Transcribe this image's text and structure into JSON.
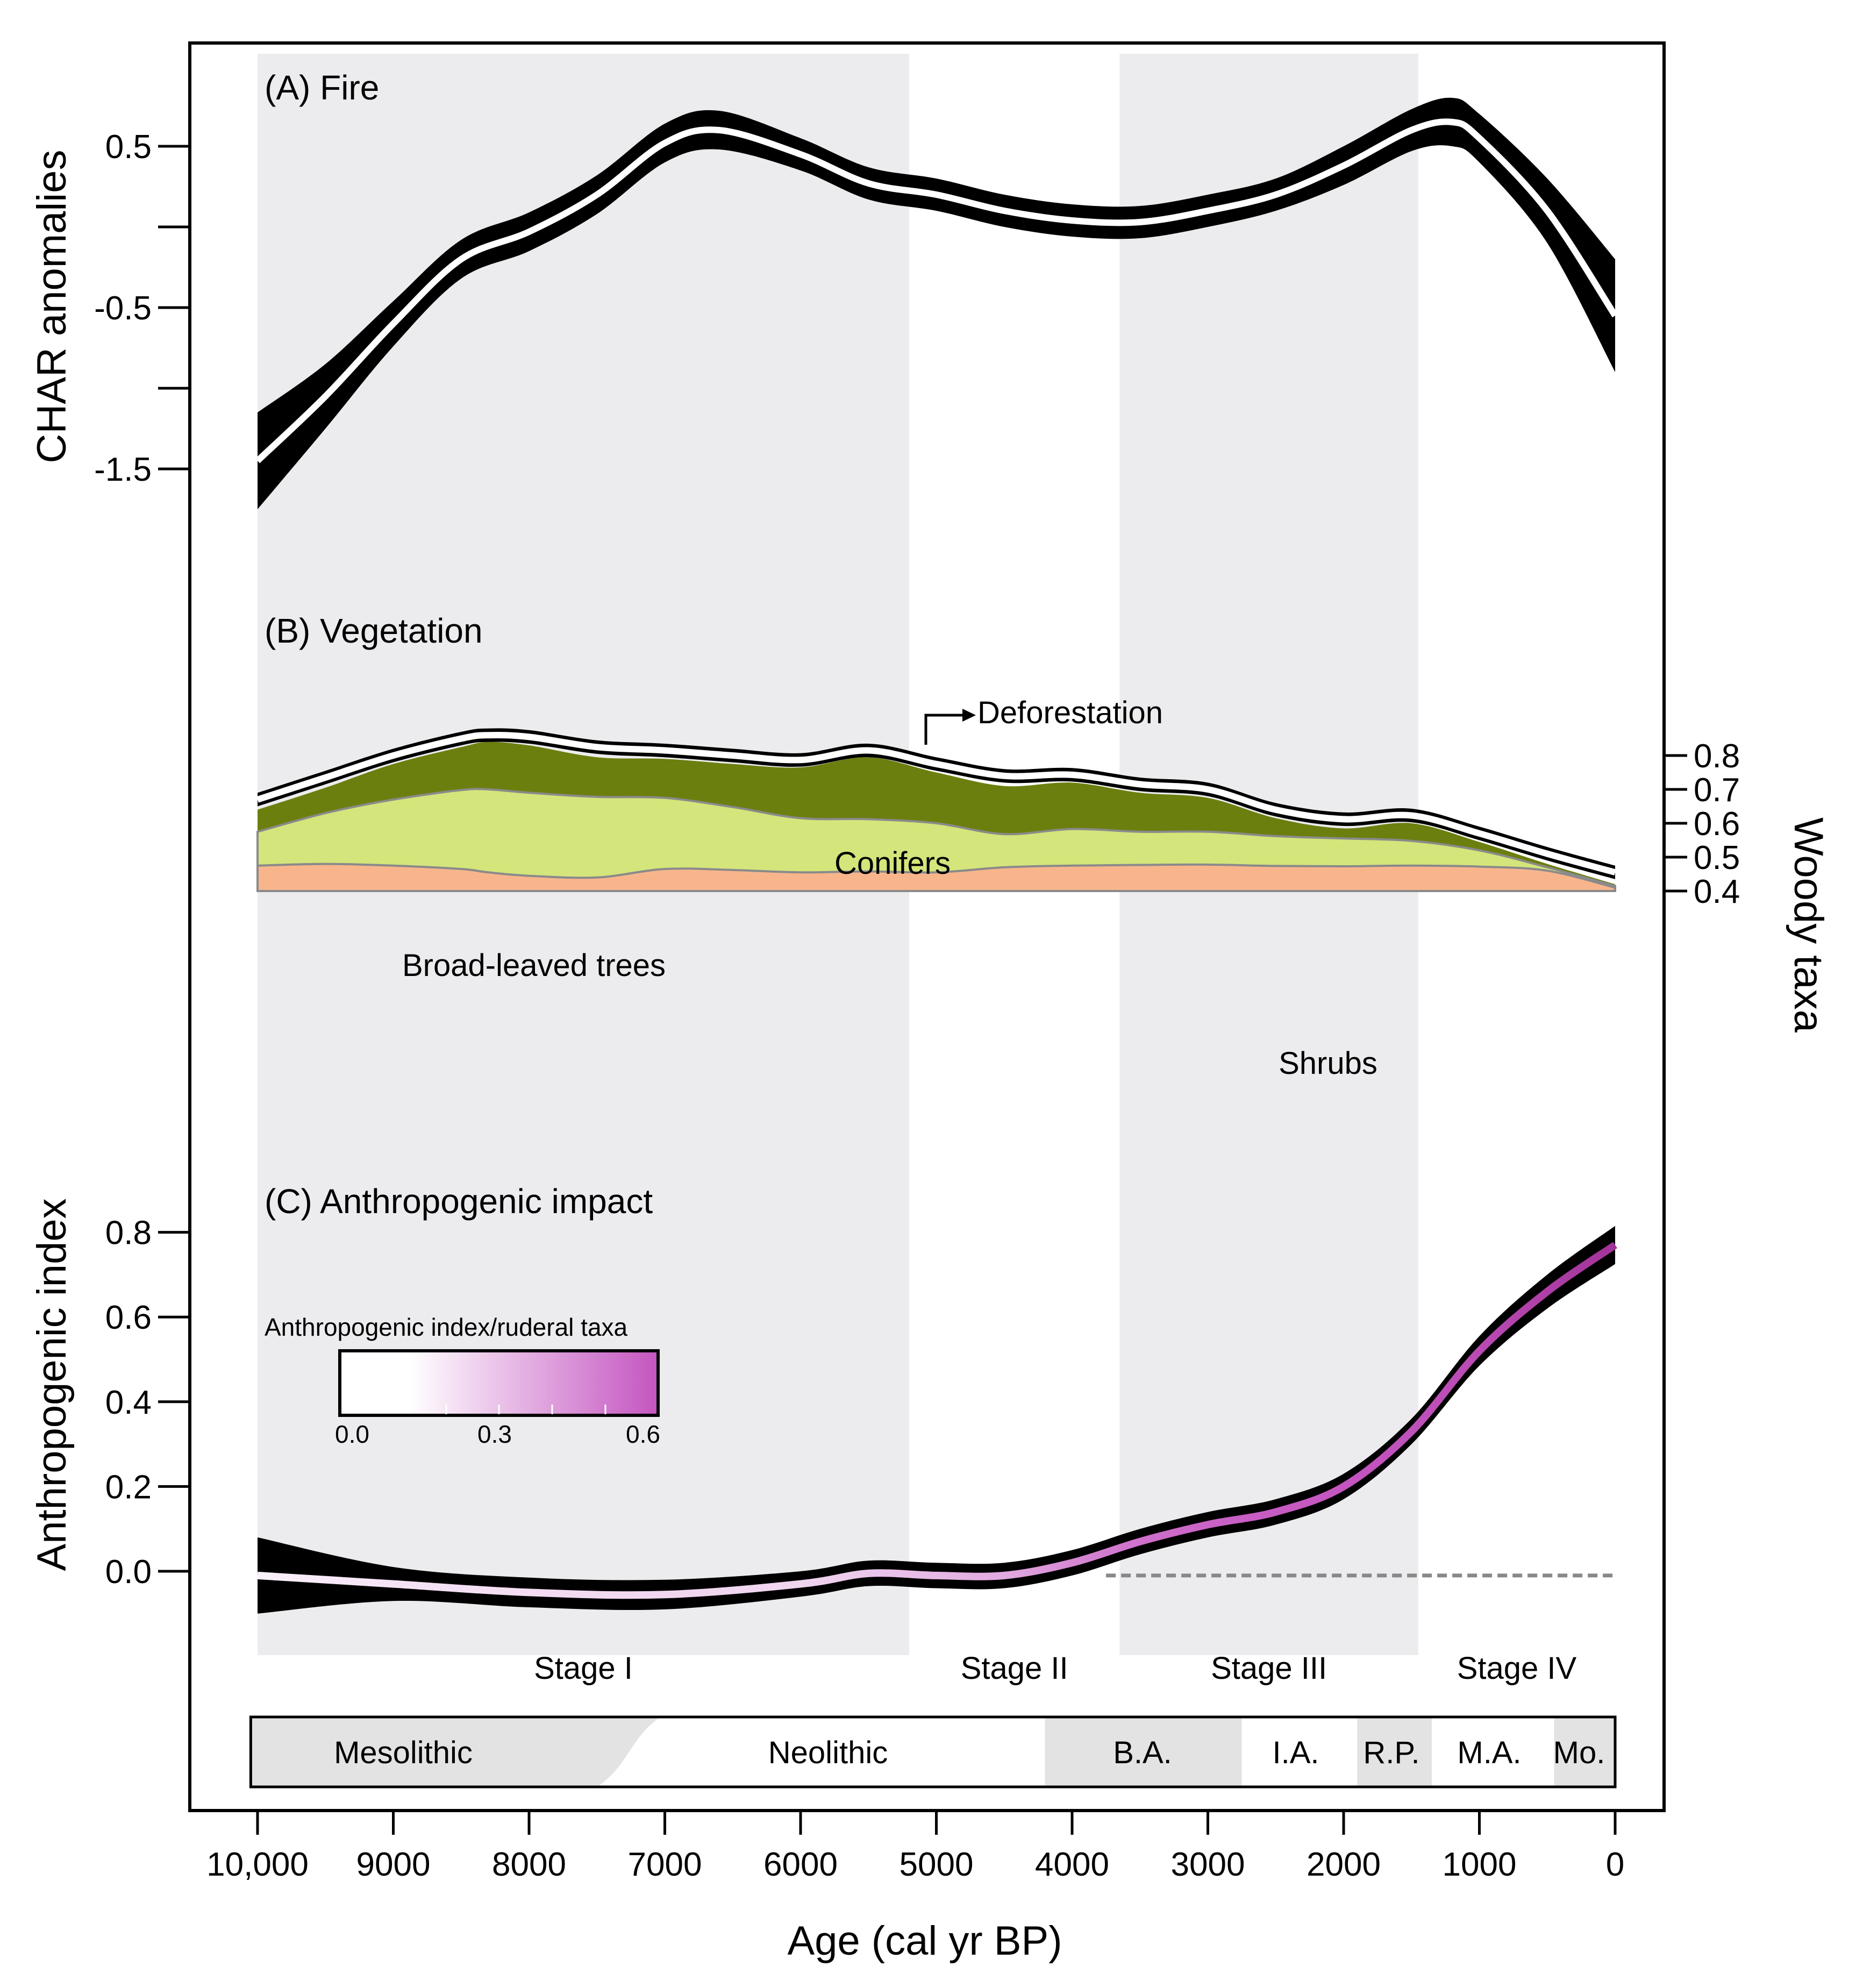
{
  "chart_data": {
    "type": "line",
    "x_axis": {
      "label": "Age (cal yr BP)",
      "range": [
        10000,
        0
      ],
      "ticks": [
        10000,
        9000,
        8000,
        7000,
        6000,
        5000,
        4000,
        3000,
        2000,
        1000,
        0
      ],
      "tick_labels": [
        "10,000",
        "9000",
        "8000",
        "7000",
        "6000",
        "5000",
        "4000",
        "3000",
        "2000",
        "1000",
        "0"
      ]
    },
    "stages": [
      {
        "name": "Stage I",
        "from": 10000,
        "to": 5200,
        "shaded": true
      },
      {
        "name": "Stage II",
        "from": 5200,
        "to": 3650,
        "shaded": false
      },
      {
        "name": "Stage III",
        "from": 3650,
        "to": 1450,
        "shaded": true
      },
      {
        "name": "Stage IV",
        "from": 1450,
        "to": 0,
        "shaded": false
      }
    ],
    "periods": [
      {
        "name": "Mesolithic",
        "from": 10050,
        "to": 7500,
        "shaded": true
      },
      {
        "name": "Neolithic",
        "from": 7500,
        "to": 4200,
        "shaded": false
      },
      {
        "name": "B.A.",
        "from": 4200,
        "to": 2750,
        "shaded": true
      },
      {
        "name": "I.A.",
        "from": 2750,
        "to": 1900,
        "shaded": false
      },
      {
        "name": "R.P.",
        "from": 1900,
        "to": 1350,
        "shaded": true
      },
      {
        "name": "M.A.",
        "from": 1350,
        "to": 450,
        "shaded": false
      },
      {
        "name": "Mo.",
        "from": 450,
        "to": 0,
        "shaded": true
      }
    ],
    "panels": [
      {
        "id": "A",
        "title": "(A) Fire",
        "ylabel": "CHAR anomalies",
        "y_ticks": [
          0.5,
          0,
          -0.5,
          -1,
          -1.5
        ],
        "y_tick_labels": [
          "0.5",
          "",
          "-0.5",
          "",
          "-1.5"
        ],
        "series": [
          {
            "name": "CHAR anomalies",
            "x": [
              10000,
              9500,
              9000,
              8500,
              8000,
              7500,
              7000,
              6600,
              6000,
              5500,
              5000,
              4500,
              4000,
              3500,
              3000,
              2500,
              2000,
              1500,
              1200,
              1000,
              500,
              0
            ],
            "mean": [
              -1.45,
              -1.05,
              -0.6,
              -0.2,
              -0.03,
              0.2,
              0.52,
              0.6,
              0.45,
              0.27,
              0.2,
              0.1,
              0.04,
              0.03,
              0.1,
              0.2,
              0.38,
              0.6,
              0.65,
              0.55,
              0.1,
              -0.55
            ],
            "ci_halfwidth": [
              0.3,
              0.2,
              0.14,
              0.12,
              0.12,
              0.12,
              0.12,
              0.12,
              0.1,
              0.1,
              0.1,
              0.1,
              0.1,
              0.1,
              0.1,
              0.1,
              0.12,
              0.13,
              0.15,
              0.15,
              0.2,
              0.35
            ]
          }
        ]
      },
      {
        "id": "B",
        "title": "(B) Vegetation",
        "ylabel": "Woody taxa",
        "y_ticks": [
          0.8,
          0.7,
          0.6,
          0.5,
          0.4
        ],
        "y_tick_labels": [
          "0.8",
          "0.7",
          "0.6",
          "0.5",
          "0.4"
        ],
        "annotation": "Deforestation",
        "x": [
          10000,
          9500,
          9000,
          8500,
          8300,
          8000,
          7500,
          7000,
          6500,
          6000,
          5500,
          5000,
          4500,
          4000,
          3500,
          3000,
          2500,
          2000,
          1500,
          1000,
          500,
          0
        ],
        "series": [
          {
            "name": "Shrubs",
            "color": "#f8b58c",
            "top": [
              0.475,
              0.48,
              0.475,
              0.465,
              0.455,
              0.445,
              0.44,
              0.465,
              0.462,
              0.455,
              0.458,
              0.455,
              0.47,
              0.475,
              0.477,
              0.478,
              0.474,
              0.473,
              0.475,
              0.472,
              0.46,
              0.41
            ]
          },
          {
            "name": "Broad-leaved trees",
            "color": "#d4e57b",
            "top": [
              0.575,
              0.63,
              0.67,
              0.698,
              0.7,
              0.69,
              0.678,
              0.675,
              0.648,
              0.615,
              0.612,
              0.6,
              0.568,
              0.583,
              0.575,
              0.575,
              0.562,
              0.555,
              0.548,
              0.52,
              0.47,
              0.415
            ]
          },
          {
            "name": "Conifers",
            "color": "#6b7f0f",
            "top": [
              0.64,
              0.705,
              0.775,
              0.825,
              0.84,
              0.83,
              0.795,
              0.79,
              0.775,
              0.765,
              0.795,
              0.75,
              0.71,
              0.72,
              0.69,
              0.675,
              0.615,
              0.585,
              0.6,
              0.545,
              0.48,
              0.42
            ]
          },
          {
            "name": "Woody taxa total",
            "mean": [
              0.67,
              0.735,
              0.8,
              0.85,
              0.86,
              0.855,
              0.825,
              0.815,
              0.8,
              0.787,
              0.815,
              0.775,
              0.74,
              0.743,
              0.715,
              0.7,
              0.64,
              0.612,
              0.623,
              0.57,
              0.51,
              0.455
            ],
            "ci_halfwidth": 0.02
          }
        ]
      },
      {
        "id": "C",
        "title": "(C) Anthropogenic impact",
        "ylabel": "Anthropogenic index",
        "y_ticks": [
          0.8,
          0.6,
          0.4,
          0.2,
          0.0
        ],
        "y_tick_labels": [
          "0.8",
          "0.6",
          "0.4",
          "0.2",
          "0.0"
        ],
        "series": [
          {
            "name": "Anthropogenic index",
            "x": [
              10000,
              9000,
              8000,
              7000,
              6000,
              5500,
              5000,
              4500,
              4000,
              3500,
              3000,
              2500,
              2000,
              1500,
              1000,
              500,
              0
            ],
            "mean": [
              -0.01,
              -0.03,
              -0.05,
              -0.055,
              -0.03,
              -0.005,
              -0.01,
              -0.01,
              0.02,
              0.07,
              0.11,
              0.14,
              0.2,
              0.33,
              0.52,
              0.66,
              0.77
            ],
            "ci_halfwidth": [
              0.09,
              0.04,
              0.035,
              0.035,
              0.03,
              0.03,
              0.03,
              0.03,
              0.03,
              0.03,
              0.03,
              0.03,
              0.03,
              0.03,
              0.035,
              0.04,
              0.045
            ],
            "color_value": [
              0.05,
              0.1,
              0.12,
              0.14,
              0.15,
              0.2,
              0.25,
              0.3,
              0.42,
              0.5,
              0.55,
              0.58,
              0.6,
              0.62,
              0.65,
              0.7,
              0.75
            ]
          },
          {
            "name": "Baseline",
            "style": "dashed",
            "x": [
              3750,
              0
            ],
            "y": [
              -0.01,
              -0.01
            ]
          }
        ],
        "colorbar": {
          "label": "Anthropogenic index/ruderal taxa",
          "range": [
            0.0,
            0.6
          ],
          "tick_labels": [
            "0.0",
            "0.3",
            "0.6"
          ],
          "colors": [
            "#ffffff",
            "#c455c0"
          ]
        }
      }
    ]
  }
}
